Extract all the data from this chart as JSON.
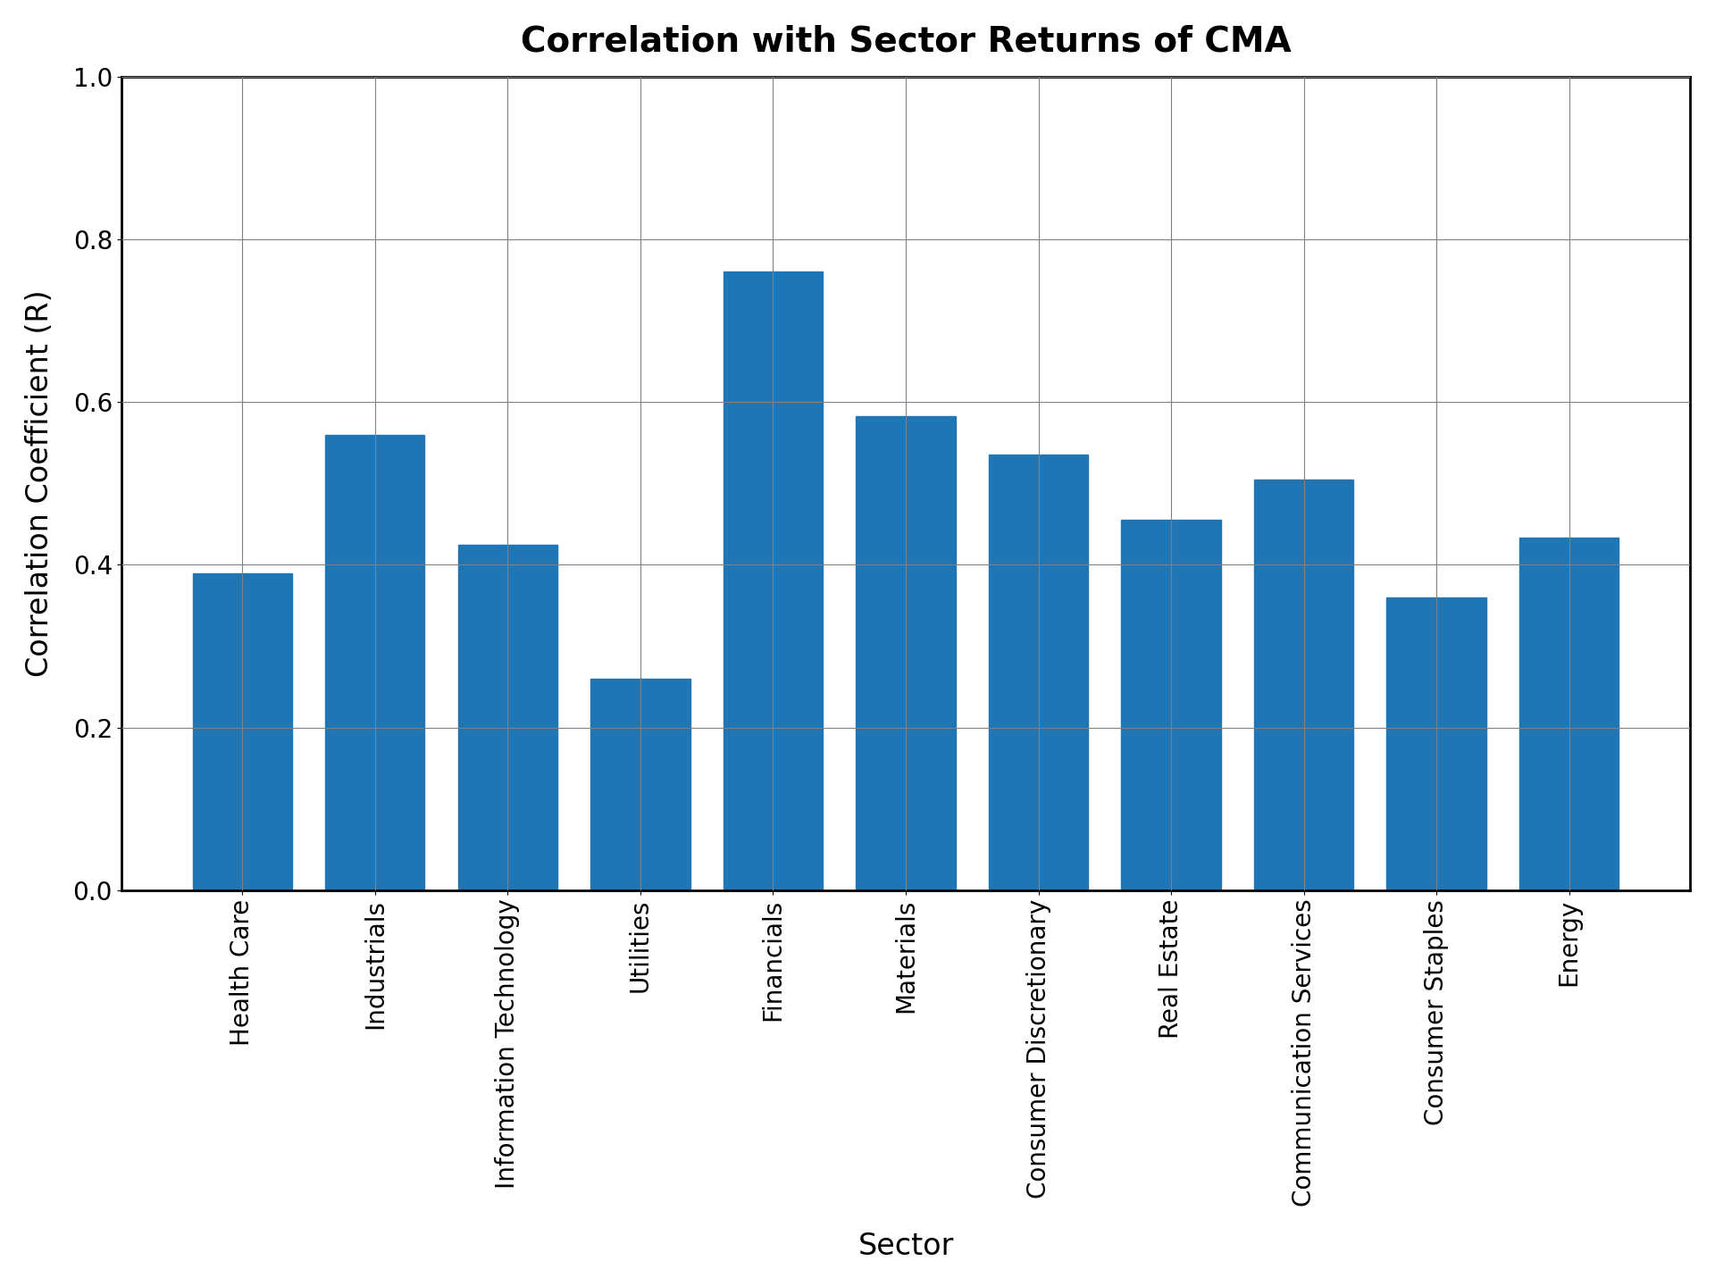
{
  "title": "Correlation with Sector Returns of CMA",
  "xlabel": "Sector",
  "ylabel": "Correlation Coefficient (R)",
  "categories": [
    "Health Care",
    "Industrials",
    "Information Technology",
    "Utilities",
    "Financials",
    "Materials",
    "Consumer Discretionary",
    "Real Estate",
    "Communication Services",
    "Consumer Staples",
    "Energy"
  ],
  "values": [
    0.39,
    0.56,
    0.425,
    0.26,
    0.76,
    0.583,
    0.535,
    0.455,
    0.505,
    0.36,
    0.433
  ],
  "bar_color": "#2076b4",
  "ylim": [
    0.0,
    1.0
  ],
  "yticks": [
    0.0,
    0.2,
    0.4,
    0.6,
    0.8,
    1.0
  ],
  "title_fontsize": 28,
  "label_fontsize": 24,
  "tick_fontsize": 20,
  "bar_width": 0.75
}
